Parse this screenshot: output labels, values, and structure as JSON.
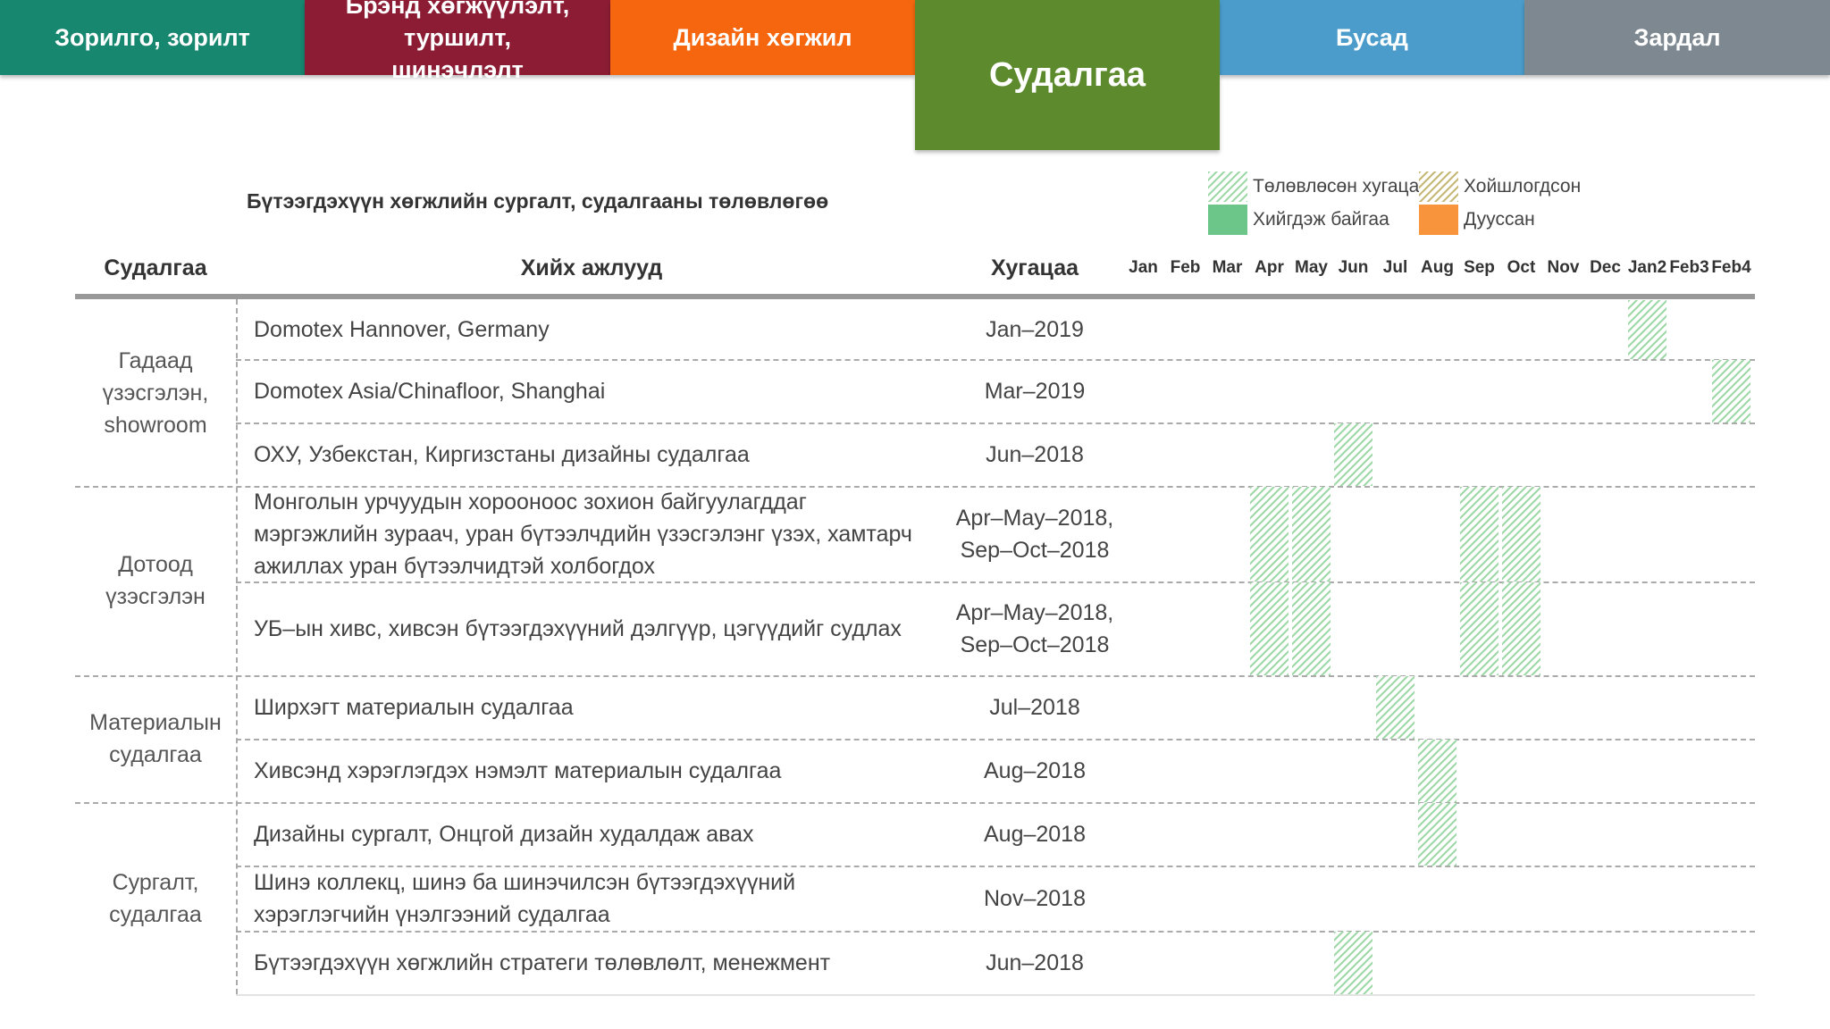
{
  "tabs": [
    {
      "label": "Зорилго, зорилт",
      "color": "#17876f"
    },
    {
      "label": "Брэнд хөгжүүлэлт, туршилт, шинэчлэлт",
      "color": "#8b1c34"
    },
    {
      "label": "Дизайн хөгжил",
      "color": "#f5660e"
    },
    {
      "label": "Судалгаа",
      "color": "#5c8a2c"
    },
    {
      "label": "Бусад",
      "color": "#4b9ccb"
    },
    {
      "label": "Зардал",
      "color": "#7d8890"
    }
  ],
  "subtitle": "Бүтээгдэхүүн хөгжлийн сургалт, судалгааны төлөвлөгөө",
  "legend": [
    {
      "label": "Төлөвлөсөн хугацаа",
      "style": "hatch-green"
    },
    {
      "label": "Хойшлогдсон",
      "style": "hatch-olive"
    },
    {
      "label": "Хийгдэж байгаа",
      "style": "solid-green"
    },
    {
      "label": "Дууссан",
      "style": "solid-orange"
    }
  ],
  "headers": {
    "category": "Судалгаа",
    "activity": "Хийх ажлууд",
    "period": "Хугацаа"
  },
  "months": [
    "Jan",
    "Feb",
    "Mar",
    "Apr",
    "May",
    "Jun",
    "Jul",
    "Aug",
    "Sep",
    "Oct",
    "Nov",
    "Dec",
    "Jan2",
    "Feb3",
    "Feb4"
  ],
  "categories": [
    {
      "label": "Гадаад үзэсгэлэн, showroom"
    },
    {
      "label": "Дотоод үзэсгэлэн"
    },
    {
      "label": "Материалын судалгаа"
    },
    {
      "label": "Сургалт, судалгаа"
    }
  ],
  "rows": [
    {
      "activity": "Domotex Hannover, Germany",
      "period": "Jan–2019",
      "bars": [
        12
      ]
    },
    {
      "activity": "Domotex Asia/Chinafloor, Shanghai",
      "period": "Mar–2019",
      "bars": [
        14
      ]
    },
    {
      "activity": "ОХУ, Узбекстан, Киргизстаны дизайны судалгаа",
      "period": "Jun–2018",
      "bars": [
        5
      ]
    },
    {
      "activity": "Монголын урчуудын хорооноос зохион байгуулагддаг мэргэжлийн зураач, уран бүтээлчдийн үзэсгэлэнг үзэх, хамтарч ажиллах уран бүтээлчидтэй холбогдох",
      "period": "Apr–May–2018, Sep–Oct–2018",
      "bars": [
        3,
        4,
        8,
        9
      ]
    },
    {
      "activity": "УБ–ын хивс, хивсэн бүтээгдэхүүний дэлгүүр, цэгүүдийг судлах",
      "period": "Apr–May–2018, Sep–Oct–2018",
      "bars": [
        3,
        4,
        8,
        9
      ]
    },
    {
      "activity": "Ширхэгт материалын судалгаа",
      "period": "Jul–2018",
      "bars": [
        6
      ]
    },
    {
      "activity": "Хивсэнд хэрэглэгдэх нэмэлт материалын судалгаа",
      "period": "Aug–2018",
      "bars": [
        7
      ]
    },
    {
      "activity": "Дизайны сургалт, Онцгой дизайн худалдаж авах",
      "period": "Aug–2018",
      "bars": [
        7
      ]
    },
    {
      "activity": "Шинэ коллекц, шинэ ба шинэчилсэн бүтээгдэхүүний хэрэглэгчийн үнэлгээний судалгаа",
      "period": "Nov–2018",
      "bars": []
    },
    {
      "activity": "Бүтээгдэхүүн хөгжлийн стратеги төлөвлөлт, менежмент",
      "period": "Jun–2018",
      "bars": [
        5
      ]
    }
  ]
}
